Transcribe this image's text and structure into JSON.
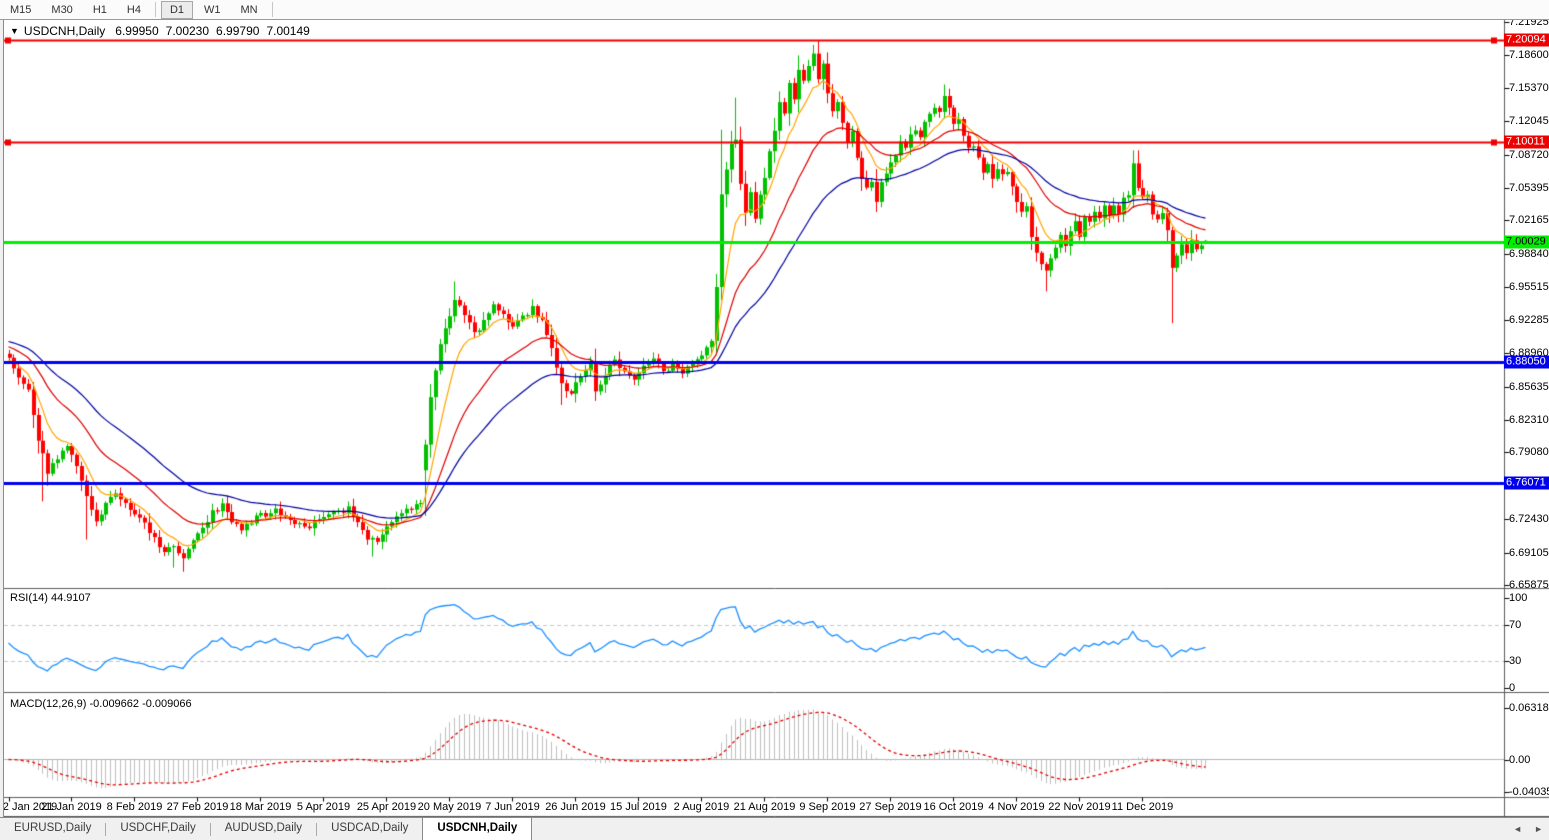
{
  "toolbar": {
    "timeframes": [
      {
        "label": "M15",
        "active": false
      },
      {
        "label": "M30",
        "active": false
      },
      {
        "label": "H1",
        "active": false
      },
      {
        "label": "H4",
        "active": false
      },
      {
        "label": "D1",
        "active": true
      },
      {
        "label": "W1",
        "active": false
      },
      {
        "label": "MN",
        "active": false
      }
    ]
  },
  "header": {
    "dropdown_icon": "triangle-down",
    "symbol": "USDCNH,Daily",
    "open": "6.99950",
    "high": "7.00230",
    "low": "6.99790",
    "close": "7.00149"
  },
  "price_axis": {
    "ticks": [
      {
        "label": "7.21925",
        "price": 7.21925
      },
      {
        "label": "7.18600",
        "price": 7.186
      },
      {
        "label": "7.15370",
        "price": 7.1537
      },
      {
        "label": "7.12045",
        "price": 7.12045
      },
      {
        "label": "7.08720",
        "price": 7.0872
      },
      {
        "label": "7.05395",
        "price": 7.05395
      },
      {
        "label": "7.02165",
        "price": 7.02165
      },
      {
        "label": "6.98840",
        "price": 6.9884
      },
      {
        "label": "6.95515",
        "price": 6.95515
      },
      {
        "label": "6.92285",
        "price": 6.92285
      },
      {
        "label": "6.88960",
        "price": 6.8896
      },
      {
        "label": "6.85635",
        "price": 6.85635
      },
      {
        "label": "6.82310",
        "price": 6.8231
      },
      {
        "label": "6.79080",
        "price": 6.7908
      },
      {
        "label": "6.75755",
        "price": 6.75755
      },
      {
        "label": "6.72430",
        "price": 6.7243
      },
      {
        "label": "6.69105",
        "price": 6.69105
      },
      {
        "label": "6.65875",
        "price": 6.65875
      }
    ]
  },
  "hlines": [
    {
      "label": "7.20094",
      "price": 7.20094,
      "color": "#ee0000",
      "thickness": 2,
      "badge_bg": "#ee0000",
      "badge_fg": "#ffffff",
      "handles": true
    },
    {
      "label": "7.10011",
      "price": 7.10011,
      "color": "#ee0000",
      "thickness": 2,
      "badge_bg": "#ee0000",
      "badge_fg": "#ffffff",
      "handles": true
    },
    {
      "label": "7.00029",
      "price": 7.00029,
      "color": "#00ee00",
      "thickness": 3,
      "badge_bg": "#00ee00",
      "badge_fg": "#000000",
      "handles": false
    },
    {
      "label": "6.88050",
      "price": 6.8805,
      "color": "#0000ee",
      "thickness": 3,
      "badge_bg": "#0000ee",
      "badge_fg": "#ffffff",
      "handles": false
    },
    {
      "label": "6.76071",
      "price": 6.76071,
      "color": "#0000ee",
      "thickness": 3,
      "badge_bg": "#0000ee",
      "badge_fg": "#ffffff",
      "handles": false
    }
  ],
  "x_axis": {
    "labels": [
      {
        "text": "2 Jan 2019",
        "bar": 0
      },
      {
        "text": "21 Jan 2019",
        "bar": 13
      },
      {
        "text": "8 Feb 2019",
        "bar": 26
      },
      {
        "text": "27 Feb 2019",
        "bar": 39
      },
      {
        "text": "18 Mar 2019",
        "bar": 52
      },
      {
        "text": "5 Apr 2019",
        "bar": 65
      },
      {
        "text": "25 Apr 2019",
        "bar": 78
      },
      {
        "text": "20 May 2019",
        "bar": 91
      },
      {
        "text": "7 Jun 2019",
        "bar": 104
      },
      {
        "text": "26 Jun 2019",
        "bar": 117
      },
      {
        "text": "15 Jul 2019",
        "bar": 130
      },
      {
        "text": "2 Aug 2019",
        "bar": 143
      },
      {
        "text": "21 Aug 2019",
        "bar": 156
      },
      {
        "text": "9 Sep 2019",
        "bar": 169
      },
      {
        "text": "27 Sep 2019",
        "bar": 182
      },
      {
        "text": "16 Oct 2019",
        "bar": 195
      },
      {
        "text": "4 Nov 2019",
        "bar": 208
      },
      {
        "text": "22 Nov 2019",
        "bar": 221
      },
      {
        "text": "11 Dec 2019",
        "bar": 234
      }
    ]
  },
  "rsi_panel": {
    "label": "RSI(14)",
    "value": "44.9107",
    "axis_labels": [
      "100",
      "70",
      "30",
      "0"
    ],
    "axis_values": [
      100,
      70,
      30,
      0
    ],
    "guide_levels": [
      70,
      30
    ],
    "line_color": "#1e90ff"
  },
  "macd_panel": {
    "label": "MACD(12,26,9)",
    "values": "-0.009662 -0.009066",
    "axis_labels": [
      "0.063184",
      "0.00",
      "-0.040355"
    ],
    "axis_values": [
      0.063184,
      0.0,
      -0.040355
    ],
    "histogram_color": "#c0c0c0",
    "signal_color": "#e00000"
  },
  "tabs": [
    {
      "label": "EURUSD,Daily",
      "active": false
    },
    {
      "label": "USDCHF,Daily",
      "active": false
    },
    {
      "label": "AUDUSD,Daily",
      "active": false
    },
    {
      "label": "USDCAD,Daily",
      "active": false
    },
    {
      "label": "USDCNH,Daily",
      "active": true
    }
  ],
  "tab_scroll": {
    "left_icon": "arrow-left",
    "left_glyph": "◄",
    "right_icon": "arrow-right",
    "right_glyph": "►"
  },
  "chart_data": {
    "type": "candlestick",
    "symbol": "USDCNH",
    "timeframe": "Daily",
    "bars": 248,
    "y_range": [
      6.65875,
      7.21925
    ],
    "last_candle": {
      "open": 6.9995,
      "high": 7.0023,
      "low": 6.9979,
      "close": 7.00149
    },
    "bull_color": "#00c000",
    "bear_color": "#ff0000",
    "horizontal_levels": [
      7.20094,
      7.10011,
      7.00029,
      6.8805,
      6.76071
    ],
    "moving_averages": [
      {
        "name": "fast",
        "period": 8,
        "color": "#ffa500",
        "seed": 6.882
      },
      {
        "name": "medium",
        "period": 21,
        "color": "#dd0000",
        "seed": 6.897
      },
      {
        "name": "slow",
        "period": 40,
        "color": "#0000a0",
        "seed": 6.902
      }
    ],
    "close_anchors": [
      [
        0,
        6.885
      ],
      [
        2,
        6.868
      ],
      [
        4,
        6.856
      ],
      [
        6,
        6.805
      ],
      [
        8,
        6.772
      ],
      [
        10,
        6.785
      ],
      [
        12,
        6.796
      ],
      [
        14,
        6.778
      ],
      [
        16,
        6.748
      ],
      [
        18,
        6.722
      ],
      [
        20,
        6.738
      ],
      [
        22,
        6.752
      ],
      [
        24,
        6.742
      ],
      [
        26,
        6.728
      ],
      [
        28,
        6.718
      ],
      [
        30,
        6.705
      ],
      [
        32,
        6.692
      ],
      [
        34,
        6.697
      ],
      [
        36,
        6.688
      ],
      [
        38,
        6.702
      ],
      [
        40,
        6.715
      ],
      [
        42,
        6.732
      ],
      [
        44,
        6.738
      ],
      [
        46,
        6.724
      ],
      [
        48,
        6.716
      ],
      [
        50,
        6.722
      ],
      [
        52,
        6.728
      ],
      [
        55,
        6.732
      ],
      [
        58,
        6.722
      ],
      [
        61,
        6.716
      ],
      [
        64,
        6.722
      ],
      [
        67,
        6.73
      ],
      [
        70,
        6.735
      ],
      [
        72,
        6.724
      ],
      [
        74,
        6.705
      ],
      [
        76,
        6.702
      ],
      [
        78,
        6.716
      ],
      [
        80,
        6.726
      ],
      [
        82,
        6.733
      ],
      [
        84,
        6.737
      ],
      [
        85,
        6.74
      ],
      [
        86,
        6.8
      ],
      [
        87,
        6.845
      ],
      [
        88,
        6.875
      ],
      [
        89,
        6.898
      ],
      [
        90,
        6.912
      ],
      [
        91,
        6.926
      ],
      [
        92,
        6.944
      ],
      [
        94,
        6.93
      ],
      [
        96,
        6.908
      ],
      [
        98,
        6.92
      ],
      [
        100,
        6.938
      ],
      [
        102,
        6.928
      ],
      [
        104,
        6.915
      ],
      [
        106,
        6.925
      ],
      [
        108,
        6.935
      ],
      [
        110,
        6.92
      ],
      [
        112,
        6.895
      ],
      [
        114,
        6.858
      ],
      [
        116,
        6.85
      ],
      [
        118,
        6.868
      ],
      [
        120,
        6.88
      ],
      [
        121,
        6.852
      ],
      [
        123,
        6.868
      ],
      [
        125,
        6.882
      ],
      [
        127,
        6.87
      ],
      [
        129,
        6.866
      ],
      [
        131,
        6.878
      ],
      [
        133,
        6.885
      ],
      [
        135,
        6.872
      ],
      [
        137,
        6.878
      ],
      [
        139,
        6.872
      ],
      [
        141,
        6.882
      ],
      [
        143,
        6.885
      ],
      [
        145,
        6.9
      ],
      [
        146,
        6.958
      ],
      [
        147,
        7.045
      ],
      [
        148,
        7.075
      ],
      [
        149,
        7.095
      ],
      [
        150,
        7.103
      ],
      [
        151,
        7.06
      ],
      [
        152,
        7.032
      ],
      [
        153,
        7.05
      ],
      [
        154,
        7.022
      ],
      [
        155,
        7.045
      ],
      [
        156,
        7.062
      ],
      [
        157,
        7.09
      ],
      [
        158,
        7.112
      ],
      [
        159,
        7.14
      ],
      [
        160,
        7.128
      ],
      [
        161,
        7.158
      ],
      [
        162,
        7.145
      ],
      [
        163,
        7.172
      ],
      [
        164,
        7.158
      ],
      [
        165,
        7.176
      ],
      [
        166,
        7.19
      ],
      [
        167,
        7.162
      ],
      [
        168,
        7.176
      ],
      [
        169,
        7.15
      ],
      [
        170,
        7.132
      ],
      [
        171,
        7.142
      ],
      [
        172,
        7.12
      ],
      [
        173,
        7.098
      ],
      [
        174,
        7.108
      ],
      [
        175,
        7.082
      ],
      [
        176,
        7.065
      ],
      [
        177,
        7.052
      ],
      [
        178,
        7.058
      ],
      [
        179,
        7.04
      ],
      [
        180,
        7.06
      ],
      [
        181,
        7.068
      ],
      [
        182,
        7.078
      ],
      [
        183,
        7.085
      ],
      [
        184,
        7.098
      ],
      [
        185,
        7.092
      ],
      [
        186,
        7.105
      ],
      [
        187,
        7.112
      ],
      [
        188,
        7.102
      ],
      [
        189,
        7.118
      ],
      [
        190,
        7.128
      ],
      [
        191,
        7.136
      ],
      [
        192,
        7.128
      ],
      [
        193,
        7.148
      ],
      [
        194,
        7.132
      ],
      [
        195,
        7.118
      ],
      [
        196,
        7.125
      ],
      [
        197,
        7.105
      ],
      [
        198,
        7.092
      ],
      [
        199,
        7.098
      ],
      [
        200,
        7.082
      ],
      [
        201,
        7.072
      ],
      [
        202,
        7.08
      ],
      [
        203,
        7.065
      ],
      [
        204,
        7.072
      ],
      [
        205,
        7.068
      ],
      [
        206,
        7.072
      ],
      [
        207,
        7.055
      ],
      [
        208,
        7.042
      ],
      [
        209,
        7.028
      ],
      [
        210,
        7.038
      ],
      [
        211,
        7.008
      ],
      [
        212,
        6.988
      ],
      [
        213,
        6.978
      ],
      [
        214,
        6.972
      ],
      [
        215,
        6.982
      ],
      [
        216,
        6.992
      ],
      [
        217,
        7.005
      ],
      [
        218,
        6.996
      ],
      [
        219,
        7.01
      ],
      [
        220,
        7.018
      ],
      [
        221,
        7.008
      ],
      [
        222,
        7.025
      ],
      [
        223,
        7.018
      ],
      [
        224,
        7.03
      ],
      [
        225,
        7.024
      ],
      [
        226,
        7.034
      ],
      [
        227,
        7.028
      ],
      [
        228,
        7.038
      ],
      [
        229,
        7.03
      ],
      [
        230,
        7.042
      ],
      [
        231,
        7.048
      ],
      [
        232,
        7.076
      ],
      [
        233,
        7.052
      ],
      [
        234,
        7.042
      ],
      [
        235,
        7.048
      ],
      [
        236,
        7.03
      ],
      [
        237,
        7.02
      ],
      [
        238,
        7.028
      ],
      [
        239,
        7.012
      ],
      [
        240,
        6.977
      ],
      [
        241,
        6.988
      ],
      [
        242,
        6.996
      ],
      [
        243,
        6.99
      ],
      [
        244,
        7.0
      ],
      [
        245,
        6.994
      ],
      [
        246,
        6.998
      ],
      [
        247,
        7.00149
      ]
    ],
    "wick_overrides": [
      {
        "bar": 7,
        "low": 6.742
      },
      {
        "bar": 16,
        "low": 6.704
      },
      {
        "bar": 34,
        "low": 6.676
      },
      {
        "bar": 36,
        "low": 6.672
      },
      {
        "bar": 75,
        "low": 6.687
      },
      {
        "bar": 92,
        "high": 6.961
      },
      {
        "bar": 114,
        "low": 6.838
      },
      {
        "bar": 121,
        "low": 6.842
      },
      {
        "bar": 147,
        "high": 7.112
      },
      {
        "bar": 150,
        "high": 7.144
      },
      {
        "bar": 163,
        "high": 7.186
      },
      {
        "bar": 166,
        "high": 7.1965
      },
      {
        "bar": 179,
        "low": 7.032
      },
      {
        "bar": 193,
        "high": 7.157
      },
      {
        "bar": 214,
        "low": 6.951
      },
      {
        "bar": 232,
        "high": 7.083
      },
      {
        "bar": 240,
        "low": 6.9195
      }
    ],
    "open_overrides": [
      {
        "bar": 86,
        "open": 6.773
      }
    ]
  }
}
